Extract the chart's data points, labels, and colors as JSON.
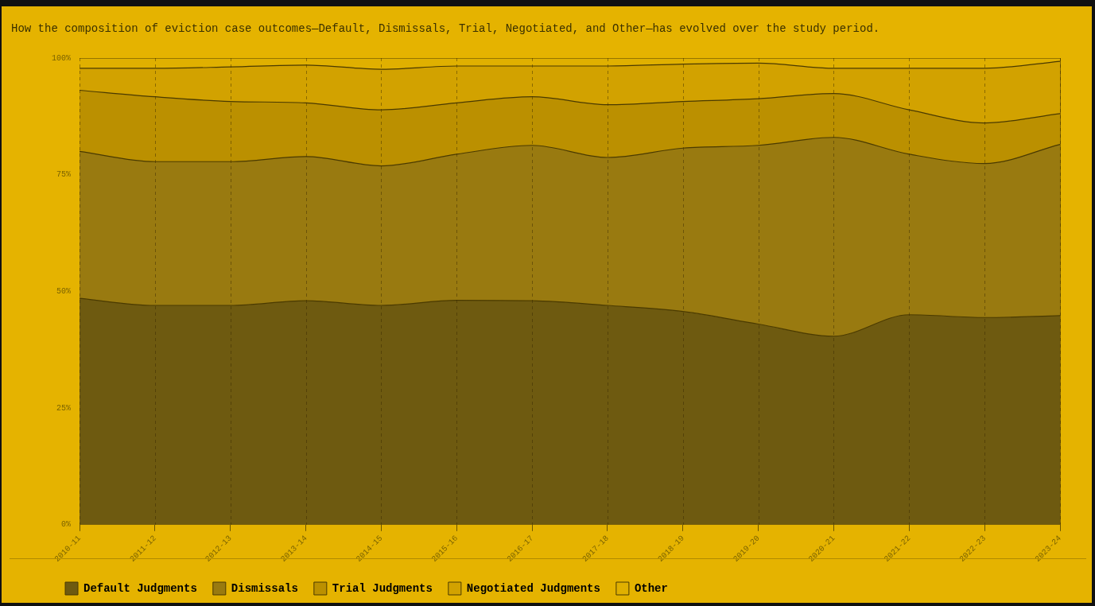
{
  "chart_data": {
    "type": "area",
    "title": "How the composition of eviction case outcomes—Default, Dismissals, Trial, Negotiated, and Other—has evolved over the study period.",
    "categories": [
      "2010-11",
      "2011-12",
      "2012-13",
      "2013-14",
      "2014-15",
      "2015-16",
      "2016-17",
      "2017-18",
      "2018-19",
      "2019-20",
      "2020-21",
      "2021-22",
      "2022-23",
      "2023-24"
    ],
    "stacked": true,
    "series": [
      {
        "name": "Default Judgments",
        "color": "#6e5a10",
        "values": [
          48.5,
          47,
          47,
          48,
          47,
          48.1,
          48,
          47,
          45.7,
          43,
          40.4,
          45,
          44.4,
          44.8
        ]
      },
      {
        "name": "Dismissals",
        "color": "#997a10",
        "values": [
          31.5,
          30.8,
          30.8,
          30.9,
          29.9,
          31.3,
          33.3,
          31.7,
          35,
          38.3,
          42.6,
          34.4,
          33,
          36.7
        ]
      },
      {
        "name": "Trial Judgments",
        "color": "#bb9000",
        "values": [
          13.1,
          13.9,
          12.9,
          11.5,
          12,
          11,
          10.4,
          11.3,
          10,
          10,
          9.4,
          9.5,
          8.7,
          6.6
        ]
      },
      {
        "name": "Negotiated Judgments",
        "color": "#d2a200",
        "values": [
          4.7,
          6.1,
          7.4,
          8.1,
          8.7,
          7.9,
          6.6,
          8.3,
          8,
          7.6,
          5.4,
          8.9,
          11.7,
          11.2
        ]
      },
      {
        "name": "Other",
        "color": "#e0b000",
        "values": [
          2.2,
          2.2,
          1.9,
          1.5,
          2.4,
          1.7,
          1.7,
          1.7,
          1.3,
          1.1,
          2.2,
          2.2,
          2.2,
          0.7
        ]
      }
    ],
    "ylim": [
      0,
      100
    ],
    "yticks": [
      {
        "value": 0,
        "label": "0%"
      },
      {
        "value": 25,
        "label": "25%"
      },
      {
        "value": 50,
        "label": "50%"
      },
      {
        "value": 75,
        "label": "75%"
      },
      {
        "value": 100,
        "label": "100%"
      }
    ],
    "grid": "x",
    "legend": "bottom left",
    "marker": "none"
  }
}
